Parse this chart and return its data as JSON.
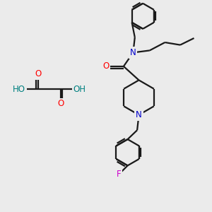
{
  "bg_color": "#ebebeb",
  "atom_colors": {
    "O": "#ff0000",
    "N": "#0000cc",
    "F": "#cc00cc",
    "C": "#000000",
    "H_acid": "#008080"
  },
  "bond_color": "#1a1a1a",
  "bond_width": 1.6,
  "font_size_atom": 8.5
}
